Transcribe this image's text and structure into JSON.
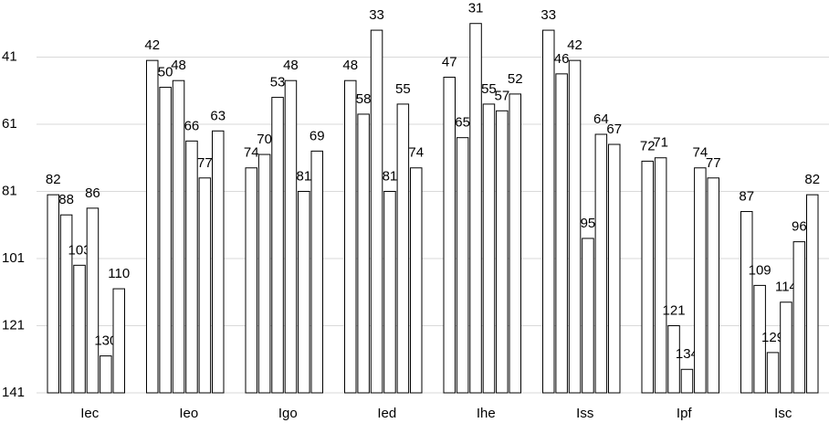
{
  "chart_data": {
    "type": "bar",
    "categories": [
      "Iec",
      "Ieo",
      "Igo",
      "Ied",
      "Ihe",
      "Iss",
      "Ipf",
      "Isc"
    ],
    "series": [
      {
        "color": "#ffffff",
        "values": [
          82,
          42,
          74,
          48,
          47,
          33,
          72,
          87
        ]
      },
      {
        "color": "#ffffff",
        "values": [
          88,
          50,
          70,
          58,
          65,
          46,
          71,
          109
        ]
      },
      {
        "color": "#ffffff",
        "values": [
          103,
          48,
          53,
          33,
          31,
          42,
          121,
          129
        ]
      },
      {
        "color": "#ffffff",
        "values": [
          86,
          66,
          48,
          81,
          55,
          95,
          134,
          114
        ]
      },
      {
        "color": "#ffffff",
        "values": [
          130,
          77,
          81,
          55,
          57,
          64,
          74,
          96
        ]
      },
      {
        "color": "#ffffff",
        "values": [
          110,
          63,
          69,
          74,
          52,
          67,
          77,
          82
        ]
      }
    ],
    "ylim": [
      141,
      24
    ],
    "yticks": [
      41,
      61,
      81,
      101,
      121,
      141
    ],
    "grid": true
  }
}
